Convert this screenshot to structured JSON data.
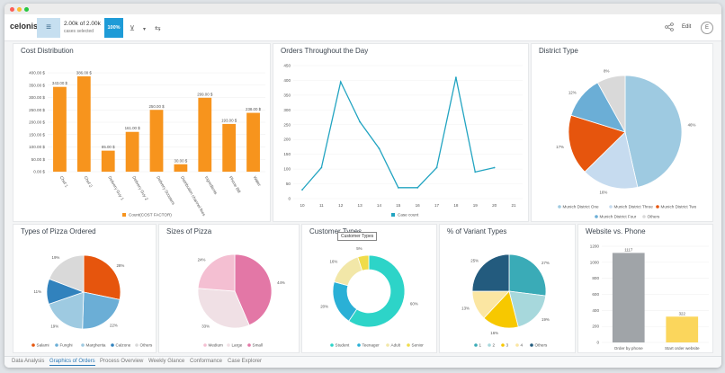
{
  "toolbar": {
    "logo_text": "celonis",
    "cases_count": "2.00k of 2.00k",
    "cases_sub": "cases selected",
    "percent": "100%",
    "edit_label": "Edit",
    "avatar_initial": "E"
  },
  "panels": {
    "cost": {
      "title": "Cost Distribution",
      "legend": "Count(COST FACTOR)"
    },
    "orders": {
      "title": "Orders Throughout the Day",
      "legend": "Case count"
    },
    "district": {
      "title": "District Type"
    },
    "pizza_types": {
      "title": "Types of Pizza Ordered"
    },
    "sizes": {
      "title": "Sizes of Pizza"
    },
    "customer": {
      "title": "Customer Types",
      "tooltip": "Customer Types"
    },
    "variants": {
      "title": "% of Variant Types"
    },
    "web": {
      "title": "Website vs. Phone"
    }
  },
  "tabs": [
    {
      "label": "Data Analysis",
      "active": false
    },
    {
      "label": "Graphics of Orders",
      "active": true
    },
    {
      "label": "Process Overview",
      "active": false
    },
    {
      "label": "Weekly Glance",
      "active": false
    },
    {
      "label": "Conformance",
      "active": false
    },
    {
      "label": "Case Explorer",
      "active": false
    }
  ],
  "colors": {
    "accent": "#1e9bd7",
    "bar": "#f7941d",
    "line": "#22a4c1"
  },
  "chart_data": [
    {
      "type": "bar",
      "title": "Cost Distribution",
      "categories": [
        "Chef 1",
        "Chef 2",
        "Delivery Guy 1",
        "Delivery Guy 2",
        "Delivery Scooters",
        "Distribution channel fees",
        "Ingredients",
        "Phone Bill",
        "Water"
      ],
      "values": [
        343,
        386,
        85,
        161,
        250,
        30,
        299,
        193,
        238
      ],
      "data_labels": [
        "343.00 $",
        "386.00 $",
        "85.00 $",
        "161.00 $",
        "250.00 $",
        "30.00 $",
        "299.00 $",
        "193.00 $",
        "238.00 $"
      ],
      "yticks": [
        "0.00 $",
        "50.00 $",
        "100.00 $",
        "150.00 $",
        "200.00 $",
        "250.00 $",
        "300.00 $",
        "350.00 $",
        "400.00 $"
      ],
      "ylim": [
        0,
        400
      ],
      "legend": [
        "Count(COST FACTOR)"
      ]
    },
    {
      "type": "line",
      "title": "Orders Throughout the Day",
      "x": [
        10,
        11,
        12,
        13,
        14,
        15,
        16,
        17,
        18,
        19,
        20,
        21
      ],
      "values": [
        30,
        105,
        395,
        260,
        170,
        37,
        37,
        105,
        410,
        90,
        105,
        0
      ],
      "ylim": [
        0,
        450
      ],
      "yticks": [
        "0",
        "50",
        "100",
        "150",
        "200",
        "250",
        "300",
        "350",
        "400",
        "450"
      ],
      "xticks": [
        "10",
        "11",
        "12",
        "13",
        "14",
        "15",
        "16",
        "17",
        "18",
        "19",
        "20",
        "21"
      ],
      "legend": [
        "Case count"
      ]
    },
    {
      "type": "pie",
      "title": "District Type",
      "labels": [
        "Munich District One",
        "Munich District Three",
        "Munich District Two",
        "Munich District Four",
        "Others"
      ],
      "values": [
        46,
        16,
        17,
        12,
        8
      ],
      "value_labels": [
        "46%",
        "16%",
        "17%",
        "12%",
        "8%"
      ],
      "colors": [
        "#9ecae1",
        "#c6dbef",
        "#e6550d",
        "#6baed6",
        "#d9d9d9"
      ]
    },
    {
      "type": "pie",
      "title": "Types of Pizza Ordered",
      "labels": [
        "Salami",
        "Funghi",
        "Margherita",
        "Calzone",
        "Others"
      ],
      "values": [
        28,
        22,
        19,
        11,
        19
      ],
      "value_labels": [
        "28%",
        "22%",
        "19%",
        "11%",
        "19%"
      ],
      "colors": [
        "#e6550d",
        "#6baed6",
        "#9ecae1",
        "#3182bd",
        "#d9d9d9"
      ]
    },
    {
      "type": "pie",
      "title": "Sizes of Pizza",
      "labels": [
        "Small",
        "Large",
        "Medium"
      ],
      "values": [
        44,
        33,
        24
      ],
      "value_labels": [
        "44%",
        "33%",
        "24%"
      ],
      "colors": [
        "#e377a6",
        "#f0e0e5",
        "#f4bfd2"
      ],
      "legend_order": [
        2,
        1,
        0
      ]
    },
    {
      "type": "donut",
      "title": "Customer Types",
      "labels": [
        "Student",
        "Teenager",
        "Adult",
        "Senior"
      ],
      "values": [
        60,
        20,
        16,
        5
      ],
      "value_labels": [
        "60%",
        "20%",
        "16%",
        "5%"
      ],
      "colors": [
        "#2dd4c8",
        "#2ab0d6",
        "#f2e7a8",
        "#f0dc4a"
      ]
    },
    {
      "type": "pie",
      "title": "% of Variant Types",
      "labels": [
        "1",
        "2",
        "3",
        "4",
        "Others"
      ],
      "values": [
        27,
        19,
        16,
        13,
        25
      ],
      "value_labels": [
        "27%",
        "19%",
        "16%",
        "13%",
        "25%"
      ],
      "colors": [
        "#3aabb7",
        "#a7d8dc",
        "#f7c800",
        "#fbe6a2",
        "#235b7e"
      ]
    },
    {
      "type": "bar",
      "title": "Website vs. Phone",
      "categories": [
        "Order by phone",
        "Start order website"
      ],
      "values": [
        1117,
        322
      ],
      "data_labels": [
        "1117",
        "322"
      ],
      "ylim": [
        0,
        1200
      ],
      "yticks": [
        "0",
        "200",
        "400",
        "600",
        "800",
        "1000",
        "1200"
      ],
      "colors": [
        "#a0a4a8",
        "#fbd65c"
      ]
    }
  ]
}
